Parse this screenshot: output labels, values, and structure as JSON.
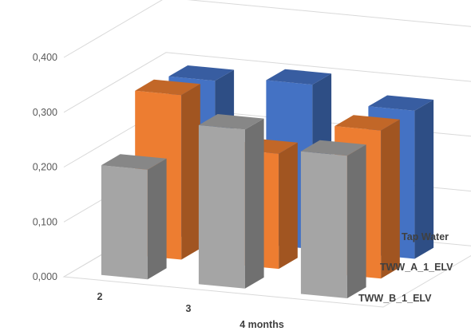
{
  "chart_data": {
    "type": "bar",
    "title": "",
    "xlabel": "",
    "ylabel": "",
    "categories": [
      "2",
      "3",
      "4 months"
    ],
    "series": [
      {
        "name": "Tap Water",
        "values": [
          0.29,
          0.3,
          0.27
        ],
        "color": "#4472C4"
      },
      {
        "name": "TWW_A_1_ELV",
        "values": [
          0.3,
          0.21,
          0.27
        ],
        "color": "#ED7D31"
      },
      {
        "name": "TWW_B_1_ELV",
        "values": [
          0.2,
          0.29,
          0.26
        ],
        "color": "#A5A5A5"
      }
    ],
    "ylim": [
      0,
      0.4
    ],
    "yticks": [
      0,
      0.1,
      0.2,
      0.3,
      0.4
    ],
    "ytick_labels": [
      "0,000",
      "0,100",
      "0,200",
      "0,300",
      "0,400"
    ],
    "grid": true,
    "legend": "none",
    "view": "3d-clustered-column"
  }
}
